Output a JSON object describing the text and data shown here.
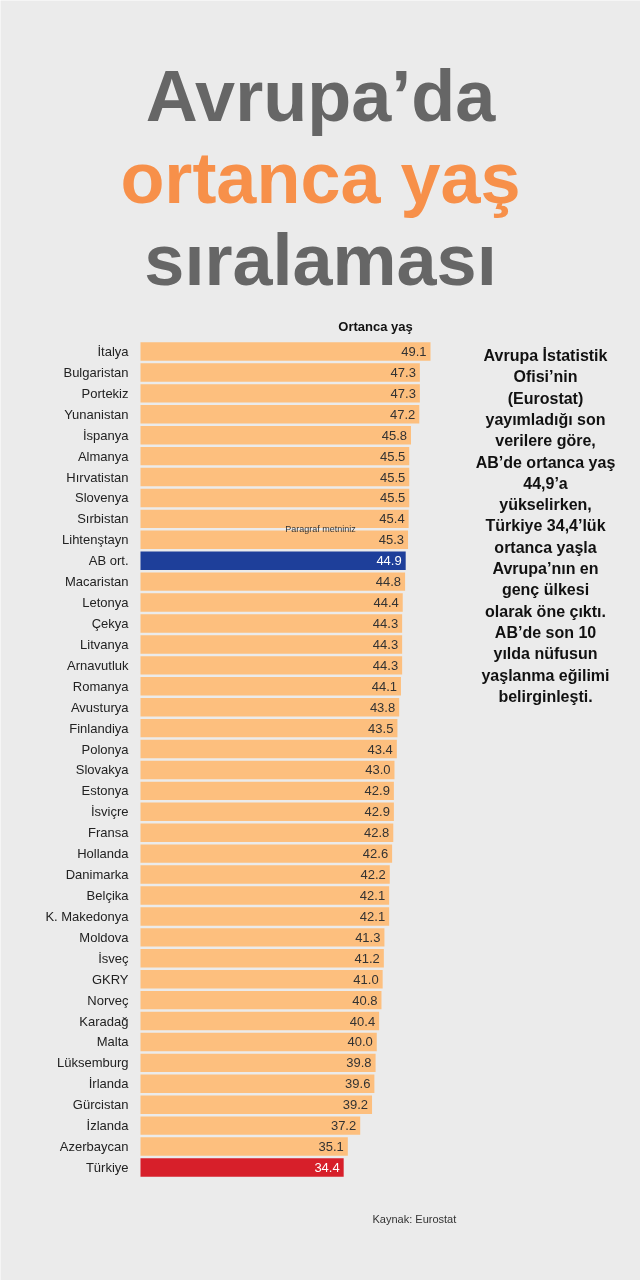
{
  "chart_data": {
    "type": "bar",
    "orientation": "horizontal",
    "title": "Avrupa’da\nortanca yaş\nsıralaması",
    "xlabel": "Ortanca yaş",
    "categories": [
      "İtalya",
      "Bulgaristan",
      "Portekiz",
      "Yunanistan",
      "İspanya",
      "Almanya",
      "Hırvatistan",
      "Slovenya",
      "Sırbistan",
      "Lihtenştayn",
      "AB ort.",
      "Macaristan",
      "Letonya",
      "Çekya",
      "Litvanya",
      "Arnavutluk",
      "Romanya",
      "Avusturya",
      "Finlandiya",
      "Polonya",
      "Slovakya",
      "Estonya",
      "İsviçre",
      "Fransa",
      "Hollanda",
      "Danimarka",
      "Belçika",
      "K. Makedonya",
      "Moldova",
      "İsveç",
      "GKRY",
      "Norveç",
      "Karadağ",
      "Malta",
      "Lüksemburg",
      "İrlanda",
      "Gürcistan",
      "İzlanda",
      "Azerbaycan",
      "Türkiye"
    ],
    "values": [
      49.1,
      47.3,
      47.3,
      47.2,
      45.8,
      45.5,
      45.5,
      45.5,
      45.4,
      45.3,
      44.9,
      44.8,
      44.4,
      44.3,
      44.3,
      44.3,
      44.1,
      43.8,
      43.5,
      43.4,
      43.0,
      42.9,
      42.9,
      42.8,
      42.6,
      42.2,
      42.1,
      42.1,
      41.3,
      41.2,
      41.0,
      40.8,
      40.4,
      40.0,
      39.8,
      39.6,
      39.2,
      37.2,
      35.1,
      34.4
    ],
    "value_labels": [
      "49.1",
      "47.3",
      "47.3",
      "47.2",
      "45.8",
      "45.5",
      "45.5",
      "45.5",
      "45.4",
      "45.3",
      "44.9",
      "44.8",
      "44.4",
      "44.3",
      "44.3",
      "44.3",
      "44.1",
      "43.8",
      "43.5",
      "43.4",
      "43.0",
      "42.9",
      "42.9",
      "42.8",
      "42.6",
      "42.2",
      "42.1",
      "42.1",
      "41.3",
      "41.2",
      "41.0",
      "40.8",
      "40.4",
      "40.0",
      "39.8",
      "39.6",
      "39.2",
      "37.2",
      "35.1",
      "34.4"
    ],
    "colors": [
      "#fdbf7e",
      "#fdbf7e",
      "#fdbf7e",
      "#fdbf7e",
      "#fdbf7e",
      "#fdbf7e",
      "#fdbf7e",
      "#fdbf7e",
      "#fdbf7e",
      "#fdbf7e",
      "#1e3f9a",
      "#fdbf7e",
      "#fdbf7e",
      "#fdbf7e",
      "#fdbf7e",
      "#fdbf7e",
      "#fdbf7e",
      "#fdbf7e",
      "#fdbf7e",
      "#fdbf7e",
      "#fdbf7e",
      "#fdbf7e",
      "#fdbf7e",
      "#fdbf7e",
      "#fdbf7e",
      "#fdbf7e",
      "#fdbf7e",
      "#fdbf7e",
      "#fdbf7e",
      "#fdbf7e",
      "#fdbf7e",
      "#fdbf7e",
      "#fdbf7e",
      "#fdbf7e",
      "#fdbf7e",
      "#fdbf7e",
      "#fdbf7e",
      "#fdbf7e",
      "#fdbf7e",
      "#d71f2a"
    ],
    "annotations": [
      "Avrupa İstatistik Ofisi’nin (Eurostat) yayımladığı son verilere göre, AB’de ortanca yaş 44,9’a yükselirken, Türkiye 34,4’lük ortanca yaşla Avrupa’nın en genç ülkesi olarak öne çıktı. AB’de son 10 yılda nüfusun yaşlanma eğilimi belirginleşti.",
      "Paragraf metniniz",
      "Kaynak: Eurostat"
    ]
  }
}
